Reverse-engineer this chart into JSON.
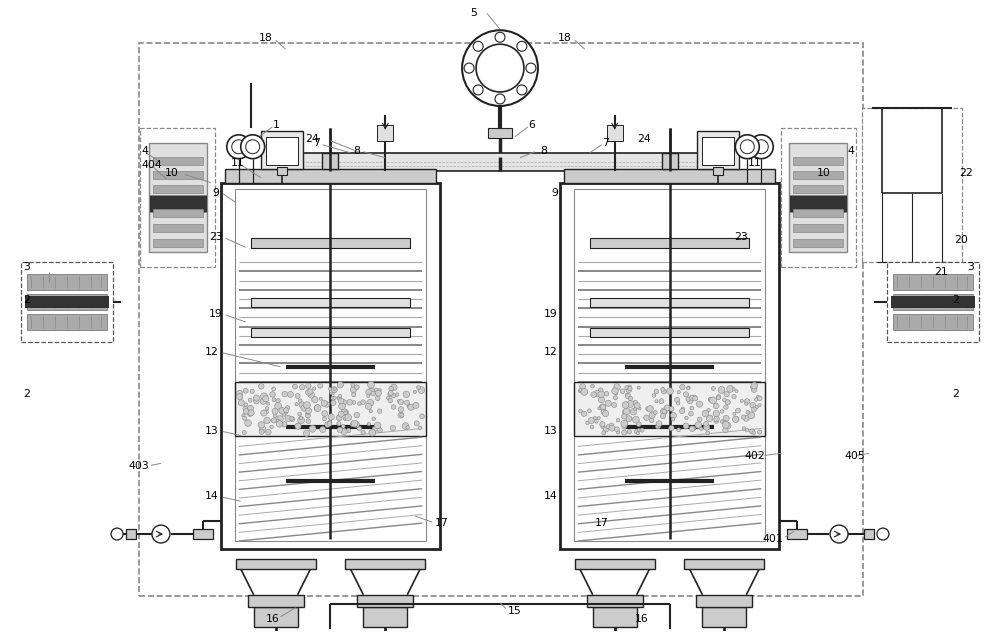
{
  "bg_color": "#ffffff",
  "line_color": "#222222",
  "figsize": [
    10.0,
    6.32
  ],
  "dpi": 100
}
